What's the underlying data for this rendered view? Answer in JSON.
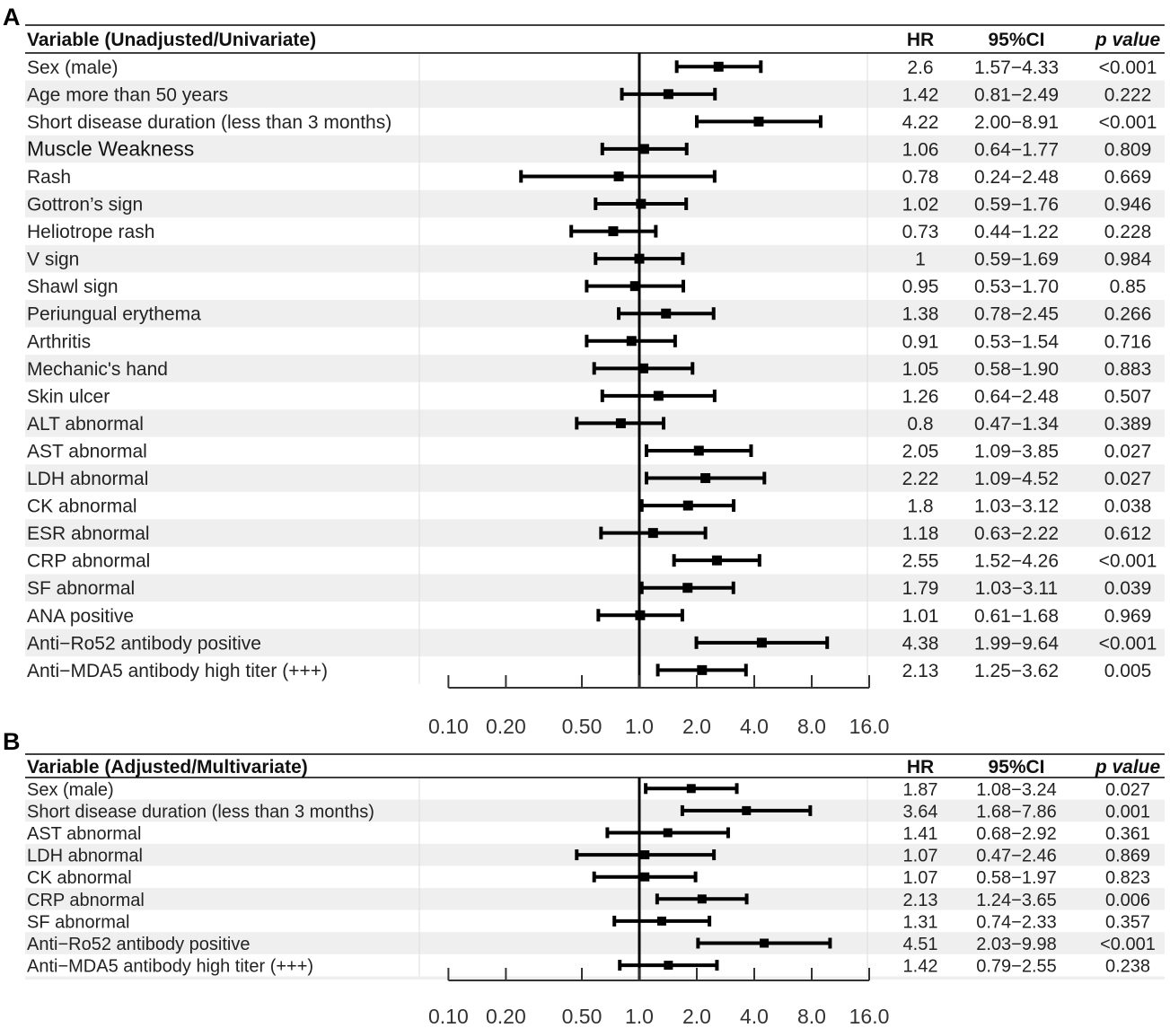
{
  "chart_data": [
    {
      "type": "forest",
      "panel": "A",
      "x_scale": "log2",
      "xlim": [
        0.1,
        16.0
      ],
      "reference_line": 1.0,
      "xticks": [
        0.1,
        0.2,
        0.5,
        1.0,
        2.0,
        4.0,
        8.0,
        16.0
      ],
      "xtick_labels": [
        "0.10",
        "0.20",
        "0.50",
        "1.0",
        "2.0",
        "4.0",
        "8.0",
        "16.0"
      ],
      "headers": {
        "variable": "Variable (Unadjusted/Univariate)",
        "hr": "HR",
        "ci": "95%CI",
        "p": "p value"
      },
      "rows": [
        {
          "label": "Sex (male)",
          "hr": 2.6,
          "lo": 1.57,
          "hi": 4.33,
          "hr_text": "2.6",
          "ci_text": "1.57−4.33",
          "p_text": "<0.001"
        },
        {
          "label": "Age more than 50 years",
          "hr": 1.42,
          "lo": 0.81,
          "hi": 2.49,
          "hr_text": "1.42",
          "ci_text": "0.81−2.49",
          "p_text": "0.222"
        },
        {
          "label": "Short disease duration (less than 3 months)",
          "hr": 4.22,
          "lo": 2.0,
          "hi": 8.91,
          "hr_text": "4.22",
          "ci_text": "2.00−8.91",
          "p_text": "<0.001"
        },
        {
          "label": "Muscle Weakness",
          "hr": 1.06,
          "lo": 0.64,
          "hi": 1.77,
          "hr_text": "1.06",
          "ci_text": "0.64−1.77",
          "p_text": "0.809",
          "large": true
        },
        {
          "label": "Rash",
          "hr": 0.78,
          "lo": 0.24,
          "hi": 2.48,
          "hr_text": "0.78",
          "ci_text": "0.24−2.48",
          "p_text": "0.669"
        },
        {
          "label": " Gottron’s sign",
          "hr": 1.02,
          "lo": 0.59,
          "hi": 1.76,
          "hr_text": "1.02",
          "ci_text": "0.59−1.76",
          "p_text": "0.946",
          "indent": true
        },
        {
          "label": " Heliotrope rash",
          "hr": 0.73,
          "lo": 0.44,
          "hi": 1.22,
          "hr_text": "0.73",
          "ci_text": "0.44−1.22",
          "p_text": "0.228",
          "indent": true
        },
        {
          "label": " V sign",
          "hr": 1.0,
          "lo": 0.59,
          "hi": 1.69,
          "hr_text": "1",
          "ci_text": "0.59−1.69",
          "p_text": "0.984",
          "indent": true
        },
        {
          "label": " Shawl sign",
          "hr": 0.95,
          "lo": 0.53,
          "hi": 1.7,
          "hr_text": "0.95",
          "ci_text": "0.53−1.70",
          "p_text": "0.85",
          "indent": true
        },
        {
          "label": "Periungual erythema",
          "hr": 1.38,
          "lo": 0.78,
          "hi": 2.45,
          "hr_text": "1.38",
          "ci_text": "0.78−2.45",
          "p_text": "0.266"
        },
        {
          "label": "Arthritis",
          "hr": 0.91,
          "lo": 0.53,
          "hi": 1.54,
          "hr_text": "0.91",
          "ci_text": "0.53−1.54",
          "p_text": "0.716"
        },
        {
          "label": "Mechanic's hand",
          "hr": 1.05,
          "lo": 0.58,
          "hi": 1.9,
          "hr_text": "1.05",
          "ci_text": "0.58−1.90",
          "p_text": "0.883"
        },
        {
          "label": "Skin ulcer",
          "hr": 1.26,
          "lo": 0.64,
          "hi": 2.48,
          "hr_text": "1.26",
          "ci_text": "0.64−2.48",
          "p_text": "0.507"
        },
        {
          "label": "ALT abnormal",
          "hr": 0.8,
          "lo": 0.47,
          "hi": 1.34,
          "hr_text": "0.8",
          "ci_text": "0.47−1.34",
          "p_text": "0.389"
        },
        {
          "label": "AST abnormal",
          "hr": 2.05,
          "lo": 1.09,
          "hi": 3.85,
          "hr_text": "2.05",
          "ci_text": "1.09−3.85",
          "p_text": "0.027"
        },
        {
          "label": "LDH abnormal",
          "hr": 2.22,
          "lo": 1.09,
          "hi": 4.52,
          "hr_text": "2.22",
          "ci_text": "1.09−4.52",
          "p_text": "0.027"
        },
        {
          "label": "CK abnormal",
          "hr": 1.8,
          "lo": 1.03,
          "hi": 3.12,
          "hr_text": "1.8",
          "ci_text": "1.03−3.12",
          "p_text": "0.038"
        },
        {
          "label": "ESR abnormal",
          "hr": 1.18,
          "lo": 0.63,
          "hi": 2.22,
          "hr_text": "1.18",
          "ci_text": "0.63−2.22",
          "p_text": "0.612"
        },
        {
          "label": "CRP abnormal",
          "hr": 2.55,
          "lo": 1.52,
          "hi": 4.26,
          "hr_text": "2.55",
          "ci_text": "1.52−4.26",
          "p_text": "<0.001"
        },
        {
          "label": "SF abnormal",
          "hr": 1.79,
          "lo": 1.03,
          "hi": 3.11,
          "hr_text": "1.79",
          "ci_text": "1.03−3.11",
          "p_text": "0.039"
        },
        {
          "label": "ANA positive",
          "hr": 1.01,
          "lo": 0.61,
          "hi": 1.68,
          "hr_text": "1.01",
          "ci_text": "0.61−1.68",
          "p_text": "0.969"
        },
        {
          "label": "Anti−Ro52 antibody positive",
          "hr": 4.38,
          "lo": 1.99,
          "hi": 9.64,
          "hr_text": "4.38",
          "ci_text": "1.99−9.64",
          "p_text": "<0.001"
        },
        {
          "label": "Anti−MDA5 antibody high titer (+++)",
          "hr": 2.13,
          "lo": 1.25,
          "hi": 3.62,
          "hr_text": "2.13",
          "ci_text": "1.25−3.62",
          "p_text": "0.005"
        }
      ]
    },
    {
      "type": "forest",
      "panel": "B",
      "x_scale": "log2",
      "xlim": [
        0.1,
        16.0
      ],
      "reference_line": 1.0,
      "xticks": [
        0.1,
        0.2,
        0.5,
        1.0,
        2.0,
        4.0,
        8.0,
        16.0
      ],
      "xtick_labels": [
        "0.10",
        "0.20",
        "0.50",
        "1.0",
        "2.0",
        "4.0",
        "8.0",
        "16.0"
      ],
      "headers": {
        "variable": "Variable (Adjusted/Multivariate)",
        "hr": "HR",
        "ci": "95%CI",
        "p": "p value"
      },
      "rows": [
        {
          "label": "Sex (male)",
          "hr": 1.87,
          "lo": 1.08,
          "hi": 3.24,
          "hr_text": "1.87",
          "ci_text": "1.08−3.24",
          "p_text": "0.027"
        },
        {
          "label": "Short disease duration (less than 3 months)",
          "hr": 3.64,
          "lo": 1.68,
          "hi": 7.86,
          "hr_text": "3.64",
          "ci_text": "1.68−7.86",
          "p_text": "0.001"
        },
        {
          "label": "AST abnormal",
          "hr": 1.41,
          "lo": 0.68,
          "hi": 2.92,
          "hr_text": "1.41",
          "ci_text": "0.68−2.92",
          "p_text": "0.361"
        },
        {
          "label": "LDH abnormal",
          "hr": 1.07,
          "lo": 0.47,
          "hi": 2.46,
          "hr_text": "1.07",
          "ci_text": "0.47−2.46",
          "p_text": "0.869"
        },
        {
          "label": "CK abnormal",
          "hr": 1.07,
          "lo": 0.58,
          "hi": 1.97,
          "hr_text": "1.07",
          "ci_text": "0.58−1.97",
          "p_text": "0.823"
        },
        {
          "label": "CRP abnormal",
          "hr": 2.13,
          "lo": 1.24,
          "hi": 3.65,
          "hr_text": "2.13",
          "ci_text": "1.24−3.65",
          "p_text": "0.006"
        },
        {
          "label": "SF abnormal",
          "hr": 1.31,
          "lo": 0.74,
          "hi": 2.33,
          "hr_text": "1.31",
          "ci_text": "0.74−2.33",
          "p_text": "0.357"
        },
        {
          "label": "Anti−Ro52 antibody positive",
          "hr": 4.51,
          "lo": 2.03,
          "hi": 9.98,
          "hr_text": "4.51",
          "ci_text": "2.03−9.98",
          "p_text": "<0.001"
        },
        {
          "label": "Anti−MDA5 antibody high titer (+++)",
          "hr": 1.42,
          "lo": 0.79,
          "hi": 2.55,
          "hr_text": "1.42",
          "ci_text": "0.79−2.55",
          "p_text": "0.238"
        }
      ]
    }
  ]
}
